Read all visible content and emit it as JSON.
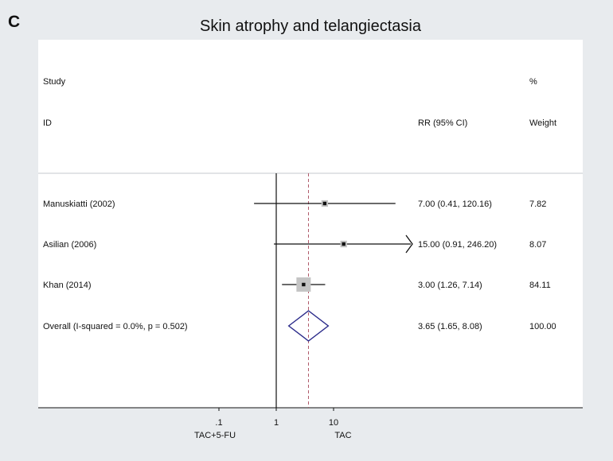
{
  "panel_label": "C",
  "chart_data": {
    "type": "forest",
    "title": "Skin atrophy and telangiectasia",
    "columns": {
      "study_header": [
        "Study",
        "ID"
      ],
      "effect_header": "RR (95% CI)",
      "weight_header": [
        "%",
        "Weight"
      ]
    },
    "studies": [
      {
        "label": "Manuskiatti (2002)",
        "rr": 7.0,
        "lo": 0.41,
        "hi": 120.16,
        "text": "7.00 (0.41, 120.16)",
        "weight": 7.82,
        "weight_text": "7.82",
        "arrow": false
      },
      {
        "label": "Asilian (2006)",
        "rr": 15.0,
        "lo": 0.91,
        "hi": 246.2,
        "text": "15.00 (0.91, 246.20)",
        "weight": 8.07,
        "weight_text": "8.07",
        "arrow": true
      },
      {
        "label": "Khan (2014)",
        "rr": 3.0,
        "lo": 1.26,
        "hi": 7.14,
        "text": "3.00 (1.26, 7.14)",
        "weight": 84.11,
        "weight_text": "84.11",
        "arrow": false
      }
    ],
    "overall": {
      "label": "Overall  (I-squared = 0.0%, p = 0.502)",
      "rr": 3.65,
      "lo": 1.65,
      "hi": 8.08,
      "text": "3.65 (1.65, 8.08)",
      "weight_text": "100.00"
    },
    "x_scale": "log",
    "x_ticks": [
      {
        "value": 0.1,
        "label": ".1"
      },
      {
        "value": 1,
        "label": "1"
      },
      {
        "value": 10,
        "label": "10"
      }
    ],
    "x_side_labels": {
      "left": "TAC+5-FU",
      "right": "TAC"
    },
    "colors": {
      "diamond": "#2a2a8a",
      "reference_dashed": "#b05a6a",
      "weight_box": "#c4c4c4",
      "lines": "#111111"
    }
  }
}
